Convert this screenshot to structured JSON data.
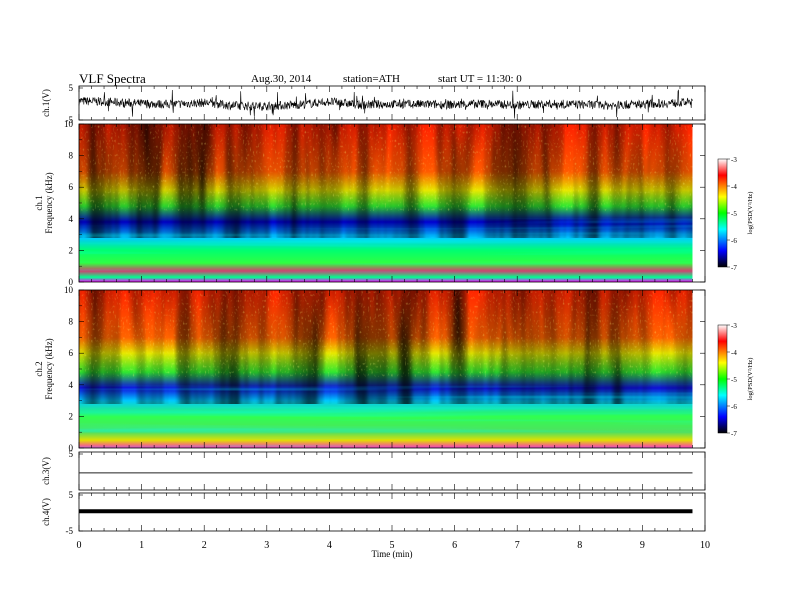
{
  "header": {
    "title": "VLF  Spectra",
    "date": "Aug.30, 2014",
    "station": "station=ATH",
    "start": "start  UT =   11:30: 0"
  },
  "colors": {
    "spectrogram": [
      "#000000",
      "#0000ff",
      "#00ffff",
      "#00ff00",
      "#ffff00",
      "#ff0000",
      "#ffffff"
    ],
    "trace": "#000000"
  },
  "chart_data": [
    {
      "type": "line",
      "panel": "ch.1 waveform",
      "ylabel": "ch.1(V)",
      "ylim": [
        -5,
        5
      ],
      "yticks": [
        "5",
        "-5"
      ],
      "x": [
        0,
        0.5,
        1,
        1.5,
        2,
        2.5,
        3,
        3.5,
        4,
        4.5,
        5,
        5.5,
        6,
        6.5,
        7,
        7.5,
        8,
        8.5,
        9,
        9.5,
        9.8
      ],
      "series": [
        {
          "values": [
            0.6,
            0.3,
            -0.2,
            -0.4,
            0.1,
            -0.8,
            -0.9,
            -0.5,
            0.4,
            -0.6,
            -0.3,
            -0.4,
            -0.5,
            -0.2,
            -0.6,
            -0.3,
            -0.4,
            -0.7,
            -0.3,
            0.0,
            0.3
          ]
        }
      ]
    },
    {
      "type": "heatmap",
      "panel": "ch.1 spectrogram",
      "ylabel": "ch.1 Frequency  (kHz)",
      "ylim": [
        0,
        10
      ],
      "yticks": [
        "0",
        "2",
        "4",
        "6",
        "8",
        "10"
      ],
      "xlim": [
        0,
        9.8
      ],
      "colorbar": {
        "label": "log(PSD(V²/Hz)",
        "range": [
          -7,
          -3
        ],
        "ticks": [
          "-3",
          "-4",
          "-5",
          "-6",
          "-7"
        ]
      }
    },
    {
      "type": "heatmap",
      "panel": "ch.2 spectrogram",
      "ylabel": "ch.2 Frequency  (kHz)",
      "ylim": [
        0,
        10
      ],
      "yticks": [
        "0",
        "2",
        "4",
        "6",
        "8",
        "10"
      ],
      "xlim": [
        0,
        9.8
      ],
      "colorbar": {
        "label": "log(PSD(V²/Hz)",
        "range": [
          -7,
          -3
        ],
        "ticks": [
          "-3",
          "-4",
          "-5",
          "-6",
          "-7"
        ]
      }
    },
    {
      "type": "line",
      "panel": "ch.3 waveform",
      "ylabel": "ch.3(V)",
      "ylim": [
        -5,
        5
      ],
      "yticks": [
        "5"
      ],
      "x": [
        0,
        9.8
      ],
      "series": [
        {
          "values": [
            -0.5,
            -0.5
          ]
        }
      ]
    },
    {
      "type": "line",
      "panel": "ch.4 waveform",
      "ylabel": "ch.4(V)",
      "ylim": [
        -5,
        5
      ],
      "yticks": [
        "5",
        "-5"
      ],
      "x": [
        0,
        9.8
      ],
      "series": [
        {
          "values": [
            0.2,
            0.2
          ]
        }
      ]
    }
  ],
  "xaxis": {
    "label": "Time  (min)",
    "range": [
      0,
      10
    ],
    "ticks": [
      "0",
      "1",
      "2",
      "3",
      "4",
      "5",
      "6",
      "7",
      "8",
      "9",
      "10"
    ]
  }
}
